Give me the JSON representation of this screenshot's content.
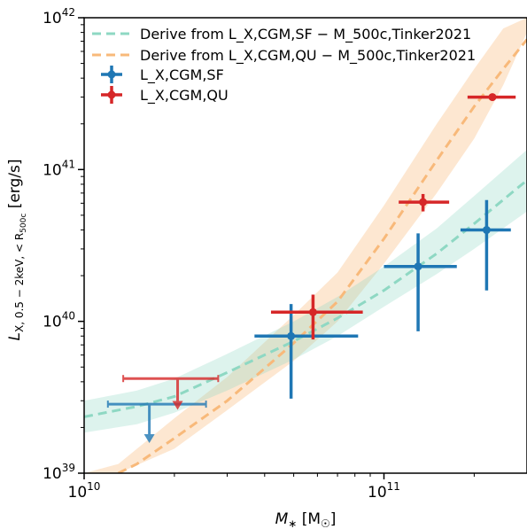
{
  "chart_data": {
    "type": "scatter",
    "xlabel": "M∗ [M☉]",
    "ylabel": "L_X,0.5−2keV,<R500c [erg/s]",
    "x_scale": "log",
    "y_scale": "log",
    "xlim": [
      10000000000.0,
      300000000000.0
    ],
    "ylim": [
      1e+39,
      1e+42
    ],
    "x_ticks": [
      {
        "value": 10000000000.0,
        "base": "10",
        "exp": "10"
      },
      {
        "value": 100000000000.0,
        "base": "10",
        "exp": "11"
      }
    ],
    "y_ticks": [
      {
        "value": 1e+39,
        "base": "10",
        "exp": "39"
      },
      {
        "value": 1e+40,
        "base": "10",
        "exp": "40"
      },
      {
        "value": 1e+41,
        "base": "10",
        "exp": "41"
      },
      {
        "value": 1e+42,
        "base": "10",
        "exp": "42"
      }
    ],
    "legend": {
      "position": "top-left",
      "entries": [
        {
          "series": "sf_model",
          "text": "Derive from L_X,CGM,SF − M_500c,Tinker2021"
        },
        {
          "series": "qu_model",
          "text": "Derive from L_X,CGM,QU − M_500c,Tinker2021"
        },
        {
          "series": "sf_data",
          "text": "L_X,CGM,SF"
        },
        {
          "series": "qu_data",
          "text": "L_X,CGM,QU"
        }
      ]
    },
    "bands": [
      {
        "id": "qu_model",
        "color": "#f8b97a",
        "opacity": 0.35,
        "x": [
          10000000000.0,
          13000000000.0,
          20000000000.0,
          30000000000.0,
          50000000000.0,
          70000000000.0,
          100000000000.0,
          150000000000.0,
          200000000000.0,
          250000000000.0,
          300000000000.0
        ],
        "y_low": [
          1e+39,
          1e+39,
          1.45e+39,
          2.6e+39,
          5.5e+39,
          1e+40,
          2.4e+40,
          7e+40,
          1.6e+41,
          3.6e+41,
          8e+41
        ],
        "y_high": [
          1e+39,
          1.15e+39,
          2.3e+39,
          4.3e+39,
          1.1e+40,
          2.1e+40,
          5.8e+40,
          2e+41,
          4.6e+41,
          8.5e+41,
          1e+42
        ]
      },
      {
        "id": "sf_model",
        "color": "#8ed8c3",
        "opacity": 0.3,
        "x": [
          10000000000.0,
          15000000000.0,
          20000000000.0,
          30000000000.0,
          50000000000.0,
          70000000000.0,
          100000000000.0,
          150000000000.0,
          200000000000.0,
          300000000000.0
        ],
        "y_low": [
          1.85e+39,
          2.1e+39,
          2.5e+39,
          3.5e+39,
          5.6e+39,
          8e+39,
          1.25e+40,
          2.05e+40,
          3e+40,
          5.3e+40
        ],
        "y_high": [
          3e+39,
          3.5e+39,
          4.2e+39,
          6.1e+39,
          1e+40,
          1.45e+40,
          2.3e+40,
          4.1e+40,
          6.7e+40,
          1.35e+41
        ]
      }
    ],
    "series": [
      {
        "id": "qu_model",
        "name": "Derive from L_X,CGM,QU − M_500c,Tinker2021",
        "style": "dashed",
        "color": "#f8b97a",
        "x": [
          13000000000.0,
          15000000000.0,
          20000000000.0,
          30000000000.0,
          40000000000.0,
          50000000000.0,
          70000000000.0,
          100000000000.0,
          150000000000.0,
          200000000000.0,
          250000000000.0,
          300000000000.0
        ],
        "y": [
          1e+39,
          1.15e+39,
          1.7e+39,
          3e+39,
          4.9e+39,
          7.2e+39,
          1.35e+40,
          3.5e+40,
          1.15e+41,
          2.6e+41,
          4.6e+41,
          7.2e+41
        ]
      },
      {
        "id": "sf_model",
        "name": "Derive from L_X,CGM,SF − M_500c,Tinker2021",
        "style": "dashed",
        "color": "#8ed8c3",
        "x": [
          10000000000.0,
          15000000000.0,
          20000000000.0,
          30000000000.0,
          50000000000.0,
          70000000000.0,
          100000000000.0,
          150000000000.0,
          200000000000.0,
          300000000000.0
        ],
        "y": [
          2.35e+39,
          2.75e+39,
          3.2e+39,
          4.6e+39,
          7.4e+39,
          1.05e+40,
          1.6e+40,
          2.8e+40,
          4.4e+40,
          8.5e+40
        ]
      },
      {
        "id": "sf_data",
        "name": "L_X,CGM,SF",
        "color": "#1f77b4",
        "points": [
          {
            "x": 49000000000.0,
            "y": 8e+39,
            "x_err": [
              37000000000.0,
              82000000000.0
            ],
            "y_err": [
              3.1e+39,
              1.3e+40
            ]
          },
          {
            "x": 130000000000.0,
            "y": 2.3e+40,
            "x_err": [
              100000000000.0,
              175000000000.0
            ],
            "y_err": [
              8.6e+39,
              3.8e+40
            ]
          },
          {
            "x": 220000000000.0,
            "y": 4e+40,
            "x_err": [
              180000000000.0,
              265000000000.0
            ],
            "y_err": [
              1.6e+40,
              6.3e+40
            ]
          }
        ],
        "upper_limits": [
          {
            "x": 16500000000.0,
            "y": 2.85e+39,
            "x_range": [
              12000000000.0,
              25500000000.0
            ],
            "arrow_to": 1.6e+39
          }
        ]
      },
      {
        "id": "qu_data",
        "name": "L_X,CGM,QU",
        "color": "#d62728",
        "points": [
          {
            "x": 58000000000.0,
            "y": 1.15e+40,
            "x_err": [
              42000000000.0,
              85000000000.0
            ],
            "y_err": [
              7.6e+39,
              1.5e+40
            ]
          },
          {
            "x": 135000000000.0,
            "y": 6.1e+40,
            "x_err": [
              112000000000.0,
              165000000000.0
            ],
            "y_err": [
              5.3e+40,
              6.9e+40
            ]
          },
          {
            "x": 230000000000.0,
            "y": 3e+41,
            "x_err": [
              190000000000.0,
              275000000000.0
            ],
            "y_err": [
              3e+41,
              3e+41
            ]
          }
        ],
        "upper_limits": [
          {
            "x": 20500000000.0,
            "y": 4.2e+39,
            "x_range": [
              13500000000.0,
              28000000000.0
            ],
            "arrow_to": 2.65e+39
          }
        ]
      }
    ]
  }
}
